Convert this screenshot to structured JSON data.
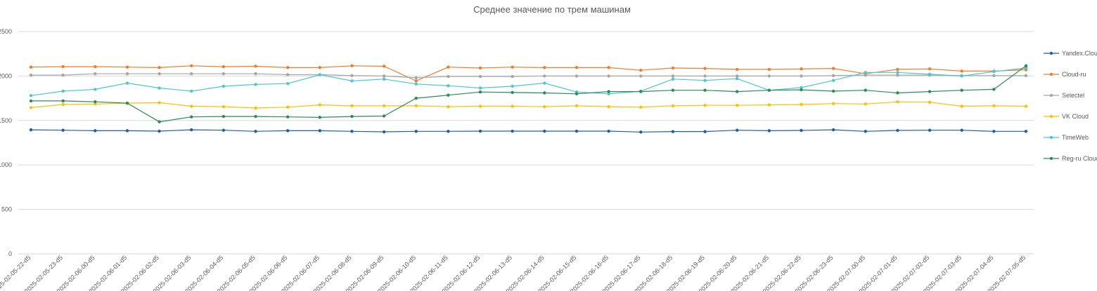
{
  "chart_data": {
    "type": "line",
    "title": "Среднее значение по трем машинам",
    "xlabel": "",
    "ylabel": "",
    "ylim": [
      0,
      2500
    ],
    "yticks": [
      "0",
      "500",
      "1000",
      "1500",
      "2000",
      "2500"
    ],
    "grid": true,
    "legend_position": "right",
    "categories": [
      "2025-02-05-22-d5",
      "2025-02-05-23-d5",
      "2025-02-06-00-d5",
      "2025-02-06-01-d5",
      "2025-02-06-02-d5",
      "2025-02-06-03-d5",
      "2025-02-06-04-d5",
      "2025-02-06-05-d5",
      "2025-02-06-06-d5",
      "2025-02-06-07-d5",
      "2025-02-06-08-d5",
      "2025-02-06-09-d5",
      "2025-02-06-10-d5",
      "2025-02-06-11-d5",
      "2025-02-06-12-d5",
      "2025-02-06-13-d5",
      "2025-02-06-14-d5",
      "2025-02-06-15-d5",
      "2025-02-06-16-d5",
      "2025-02-06-17-d5",
      "2025-02-06-18-d5",
      "2025-02-06-19-d5",
      "2025-02-06-20-d5",
      "2025-02-06-21-d5",
      "2025-02-06-22-d5",
      "2025-02-06-23-d5",
      "2025-02-07-00-d5",
      "2025-02-07-01-d5",
      "2025-02-07-02-d5",
      "2025-02-07-03-d5",
      "2025-02-07-04-d5",
      "2025-02-07-05-d5"
    ],
    "series": [
      {
        "name": "Yandex.Cloud",
        "color": "#1f5ea8",
        "values": [
          1395,
          1390,
          1385,
          1385,
          1380,
          1395,
          1390,
          1378,
          1385,
          1385,
          1378,
          1372,
          1378,
          1378,
          1380,
          1380,
          1380,
          1380,
          1380,
          1370,
          1375,
          1375,
          1390,
          1385,
          1388,
          1395,
          1378,
          1388,
          1390,
          1390,
          1378,
          1378
        ]
      },
      {
        "name": "Cloud-ru",
        "color": "#ed7d31",
        "values": [
          2100,
          2105,
          2105,
          2100,
          2095,
          2115,
          2105,
          2110,
          2095,
          2095,
          2115,
          2110,
          1945,
          2100,
          2090,
          2100,
          2095,
          2095,
          2095,
          2065,
          2090,
          2085,
          2075,
          2075,
          2080,
          2085,
          2025,
          2075,
          2080,
          2055,
          2055,
          2070
        ]
      },
      {
        "name": "Selectel",
        "color": "#a5a5a5",
        "values": [
          2010,
          2010,
          2025,
          2025,
          2025,
          2025,
          2025,
          2025,
          2015,
          2015,
          2005,
          2000,
          1980,
          1995,
          1995,
          1995,
          2000,
          2000,
          2000,
          2000,
          2000,
          2000,
          2000,
          2000,
          2000,
          2005,
          2010,
          2010,
          2010,
          2005,
          2005,
          2005
        ]
      },
      {
        "name": "VK Cloud",
        "color": "#ffc000",
        "values": [
          1645,
          1680,
          1685,
          1695,
          1700,
          1660,
          1655,
          1640,
          1650,
          1675,
          1665,
          1665,
          1665,
          1655,
          1660,
          1660,
          1655,
          1665,
          1655,
          1650,
          1665,
          1670,
          1670,
          1675,
          1680,
          1690,
          1685,
          1710,
          1705,
          1660,
          1665,
          1660
        ]
      },
      {
        "name": "TimeWeb",
        "color": "#4bc7cf",
        "values": [
          1780,
          1830,
          1850,
          1920,
          1865,
          1830,
          1885,
          1905,
          1915,
          2015,
          1945,
          1965,
          1910,
          1890,
          1865,
          1885,
          1920,
          1820,
          1800,
          1830,
          1965,
          1950,
          1970,
          1840,
          1870,
          1950,
          2040,
          2040,
          2020,
          2000,
          2050,
          2090
        ]
      },
      {
        "name": "Reg-ru Cloud",
        "color": "#2e8b57",
        "values": [
          1720,
          1720,
          1710,
          1695,
          1485,
          1540,
          1545,
          1545,
          1540,
          1535,
          1545,
          1550,
          1750,
          1785,
          1820,
          1815,
          1810,
          1800,
          1825,
          1825,
          1840,
          1840,
          1825,
          1840,
          1845,
          1830,
          1840,
          1810,
          1825,
          1840,
          1850,
          2115
        ]
      }
    ]
  }
}
